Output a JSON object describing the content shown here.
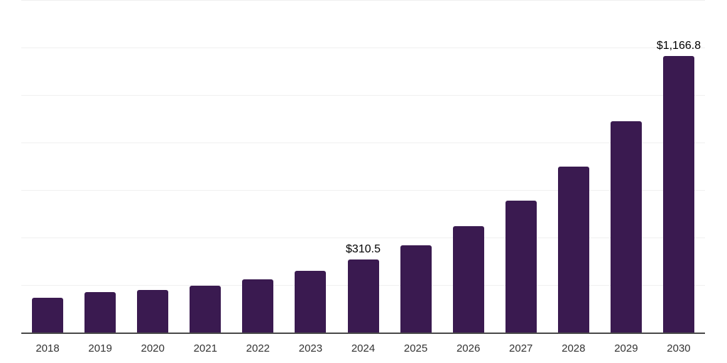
{
  "chart_data": {
    "type": "bar",
    "title": "",
    "xlabel": "",
    "ylabel": "",
    "categories": [
      "2018",
      "2019",
      "2020",
      "2021",
      "2022",
      "2023",
      "2024",
      "2025",
      "2026",
      "2027",
      "2028",
      "2029",
      "2030"
    ],
    "values": [
      150,
      173,
      182,
      200,
      227,
      263,
      310.5,
      370,
      452,
      558,
      703,
      893,
      1166.8
    ],
    "data_labels": {
      "2024": "$310.5",
      "2030": "$1,166.8"
    },
    "ylim": [
      0,
      1400
    ],
    "gridline_step": 200,
    "grid": true,
    "y_tick_labels_visible": false,
    "legend_position": "none",
    "colors": {
      "bar": "#3a1a50",
      "gridline": "#f0f0f0",
      "axis": "#4a4a4a",
      "tick_label": "#333333",
      "data_label": "#000000",
      "background": "#ffffff"
    }
  }
}
